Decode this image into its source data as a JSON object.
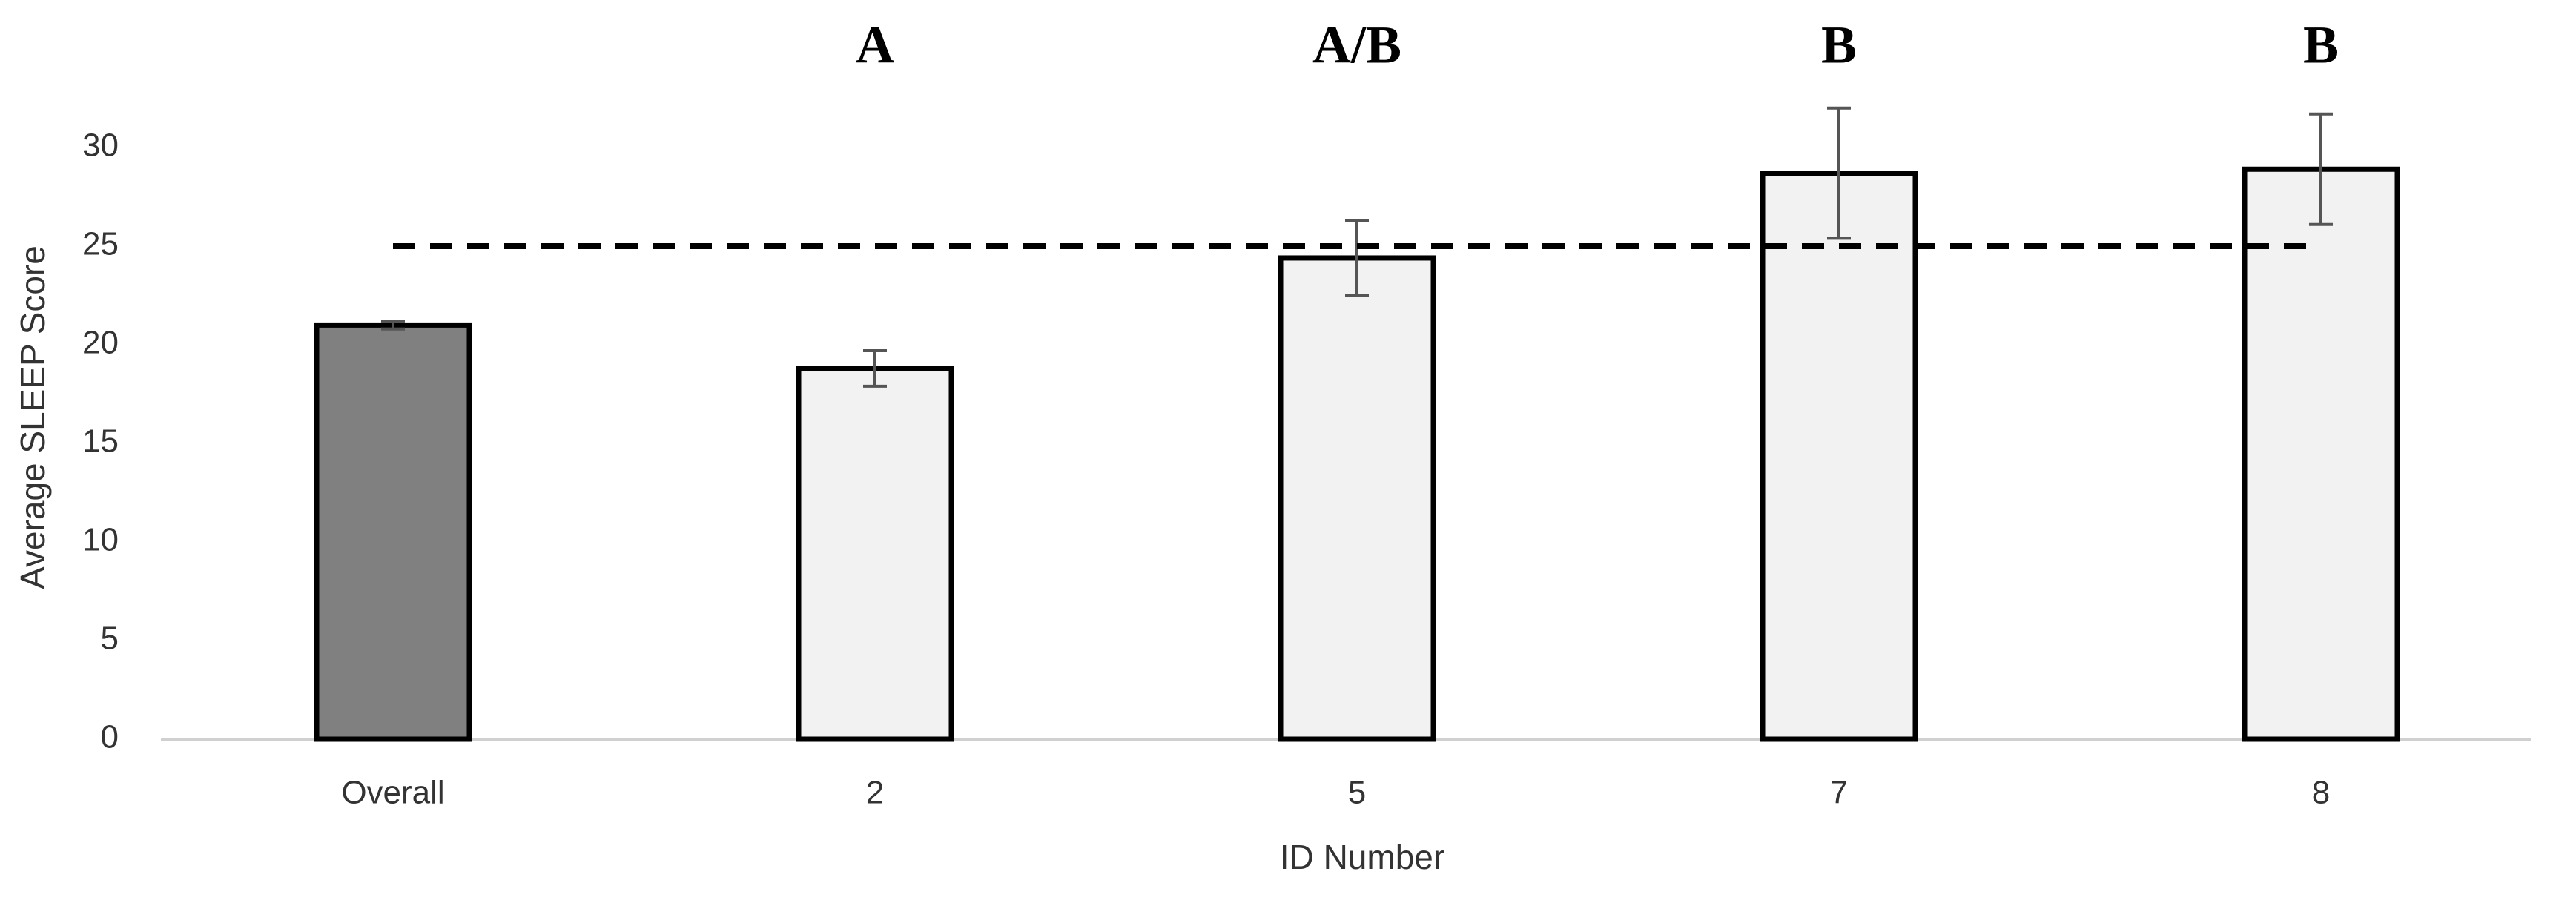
{
  "chart_data": {
    "type": "bar",
    "x_label": "ID Number",
    "y_label": "Average SLEEP Score",
    "categories": [
      "Overall",
      "2",
      "5",
      "7",
      "8"
    ],
    "values": [
      21.0,
      18.8,
      24.4,
      28.7,
      28.9
    ],
    "errors": [
      0.2,
      0.9,
      1.9,
      3.3,
      2.8
    ],
    "colors": [
      "#808080",
      "#f2f2f2",
      "#f2f2f2",
      "#f2f2f2",
      "#f2f2f2"
    ],
    "annotations": [
      null,
      "A",
      "A/B",
      "B",
      "B"
    ],
    "reference_line": 25,
    "ylim": [
      0,
      30
    ],
    "yticks": [
      0,
      5,
      10,
      15,
      20,
      25,
      30
    ]
  }
}
